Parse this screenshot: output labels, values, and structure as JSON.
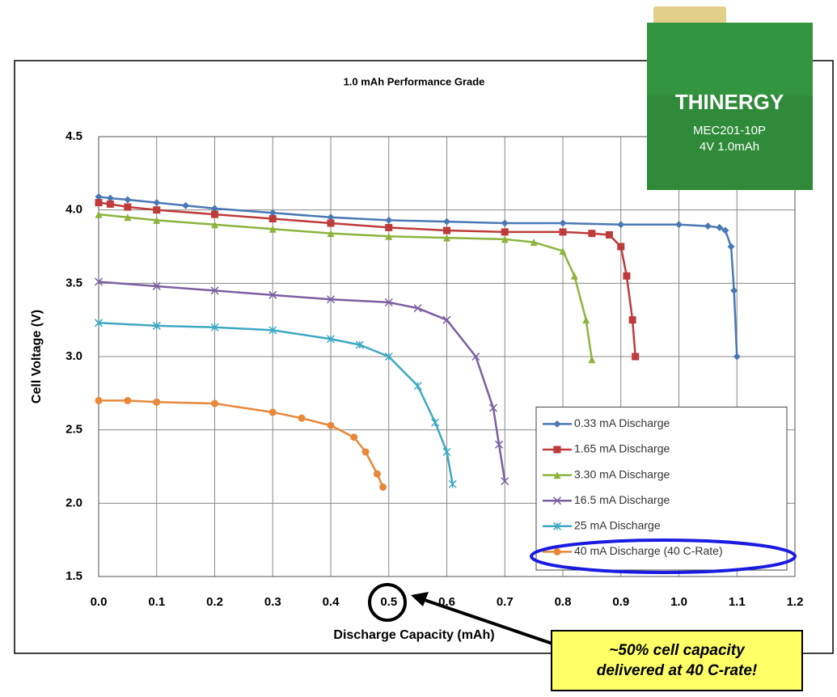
{
  "chart_data": {
    "type": "line",
    "title": "1.0 mAh Performance Grade",
    "x_label": "Discharge Capacity (mAh)",
    "y_label": "Cell Voltage (V)",
    "xlim": [
      0,
      1.2
    ],
    "ylim": [
      1.5,
      4.5
    ],
    "xticks": [
      {
        "value": 0,
        "label": "0.0"
      },
      0.1,
      0.2,
      0.3,
      0.4,
      0.5,
      0.6,
      0.7,
      0.8,
      0.9,
      {
        "value": 1,
        "label": "1.0"
      },
      1.1,
      1.2
    ],
    "yticks": [
      1.5,
      {
        "value": 2,
        "label": "2.0"
      },
      2.5,
      {
        "value": 3,
        "label": "3.0"
      },
      3.5,
      {
        "value": 4,
        "label": "4.0"
      },
      4.5
    ],
    "grid": true,
    "legend": "lower right",
    "series": [
      {
        "name": "0.33 mA Discharge",
        "color": "#4a78b5",
        "marker": "diamond",
        "x": [
          0,
          0.02,
          0.05,
          0.1,
          0.15,
          0.2,
          0.3,
          0.4,
          0.5,
          0.6,
          0.7,
          0.8,
          0.9,
          1.0,
          1.05,
          1.07,
          1.08,
          1.09,
          1.095,
          1.1
        ],
        "values": [
          4.09,
          4.08,
          4.07,
          4.05,
          4.03,
          4.01,
          3.98,
          3.95,
          3.93,
          3.92,
          3.91,
          3.91,
          3.9,
          3.9,
          3.89,
          3.88,
          3.86,
          3.75,
          3.45,
          3.0
        ]
      },
      {
        "name": "1.65 mA Discharge",
        "color": "#be3b3b",
        "marker": "square",
        "x": [
          0,
          0.02,
          0.05,
          0.1,
          0.2,
          0.3,
          0.4,
          0.5,
          0.6,
          0.7,
          0.8,
          0.85,
          0.88,
          0.9,
          0.91,
          0.92,
          0.925
        ],
        "values": [
          4.05,
          4.04,
          4.02,
          4.0,
          3.97,
          3.94,
          3.91,
          3.88,
          3.86,
          3.85,
          3.85,
          3.84,
          3.83,
          3.75,
          3.55,
          3.25,
          3.0
        ]
      },
      {
        "name": "3.30 mA Discharge",
        "color": "#8db33f",
        "marker": "triangle",
        "x": [
          0,
          0.05,
          0.1,
          0.2,
          0.3,
          0.4,
          0.5,
          0.6,
          0.7,
          0.75,
          0.8,
          0.82,
          0.84,
          0.85
        ],
        "values": [
          3.97,
          3.95,
          3.93,
          3.9,
          3.87,
          3.84,
          3.82,
          3.81,
          3.8,
          3.78,
          3.72,
          3.55,
          3.25,
          2.98
        ]
      },
      {
        "name": "16.5 mA Discharge",
        "color": "#7b5fa1",
        "marker": "x",
        "x": [
          0,
          0.1,
          0.2,
          0.3,
          0.4,
          0.5,
          0.55,
          0.6,
          0.65,
          0.68,
          0.69,
          0.7
        ],
        "values": [
          3.51,
          3.48,
          3.45,
          3.42,
          3.39,
          3.37,
          3.33,
          3.25,
          3.0,
          2.65,
          2.4,
          2.15
        ]
      },
      {
        "name": "25 mA Discharge",
        "color": "#3ea8c2",
        "marker": "star",
        "x": [
          0,
          0.1,
          0.2,
          0.3,
          0.4,
          0.45,
          0.5,
          0.55,
          0.58,
          0.6,
          0.61
        ],
        "values": [
          3.23,
          3.21,
          3.2,
          3.18,
          3.12,
          3.08,
          3.0,
          2.8,
          2.55,
          2.35,
          2.13
        ]
      },
      {
        "name": "40 mA Discharge (40 C-Rate)",
        "color": "#e8883a",
        "marker": "circle",
        "x": [
          0,
          0.05,
          0.1,
          0.2,
          0.3,
          0.35,
          0.4,
          0.44,
          0.46,
          0.48,
          0.49
        ],
        "values": [
          2.7,
          2.7,
          2.69,
          2.68,
          2.62,
          2.58,
          2.53,
          2.45,
          2.35,
          2.2,
          2.11
        ]
      }
    ],
    "annotations": [
      "~50% cell capacity delivered at 40 C-rate!"
    ],
    "badge": {
      "brand": "THINERGY",
      "model": "MEC201-10P",
      "rating": "4V  1.0mAh"
    }
  }
}
